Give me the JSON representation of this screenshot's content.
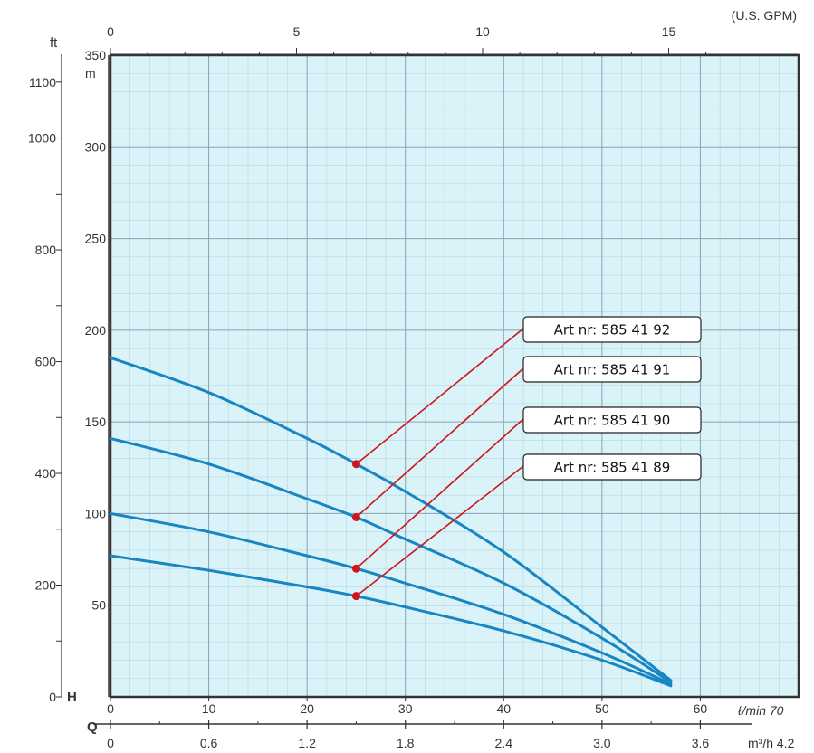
{
  "colors": {
    "plot_background": "#d9f3f8",
    "grid_major": "#8aa1b4",
    "grid_minor": "#b9d4de",
    "curve": "#1786c2",
    "callout": "#d0141b",
    "axis": "#333333"
  },
  "chart_data": {
    "type": "line",
    "x_unit": "l/min",
    "y_unit": "m",
    "xlim": [
      0,
      70
    ],
    "ylim": [
      0,
      350
    ],
    "grid": true,
    "axes": {
      "top": {
        "unit_label": "(U.S. GPM)",
        "ticks": [
          0,
          5,
          10,
          15
        ],
        "tick_labels": [
          "0",
          "5",
          "10",
          "15"
        ]
      },
      "bottom_primary": {
        "axis_label": "H",
        "unit_label": "ℓ/min 70",
        "ticks": [
          0,
          10,
          20,
          30,
          40,
          50,
          60
        ],
        "tick_labels": [
          "0",
          "10",
          "20",
          "30",
          "40",
          "50",
          "60"
        ]
      },
      "bottom_secondary": {
        "axis_label": "Q",
        "unit_label": "m³/h 4.2",
        "ticks": [
          0,
          0.6,
          1.2,
          1.8,
          2.4,
          3.0,
          3.6
        ],
        "tick_labels": [
          "0",
          "0.6",
          "1.2",
          "1.8",
          "2.4",
          "3.0",
          "3.6"
        ]
      },
      "left_outer": {
        "unit_label": "ft",
        "ticks": [
          0,
          200,
          400,
          600,
          800,
          1000,
          1100
        ],
        "tick_labels": [
          "0",
          "200",
          "400",
          "600",
          "800",
          "1000",
          "1100"
        ]
      },
      "left_inner": {
        "unit_label": "m",
        "ticks": [
          50,
          100,
          150,
          200,
          250,
          300,
          350
        ],
        "tick_labels": [
          "50",
          "100",
          "150",
          "200",
          "250",
          "300",
          "350"
        ]
      }
    },
    "series": [
      {
        "name": "Art nr: 585 41 92",
        "x": [
          0,
          10,
          20,
          25,
          30,
          40,
          50,
          57
        ],
        "y": [
          185,
          166,
          141,
          127,
          112,
          79,
          38,
          9
        ],
        "marker": [
          25,
          127
        ]
      },
      {
        "name": "Art nr: 585 41 91",
        "x": [
          0,
          10,
          20,
          25,
          30,
          40,
          50,
          57
        ],
        "y": [
          141,
          127,
          108,
          98,
          86,
          62,
          32,
          8
        ],
        "marker": [
          25,
          98
        ]
      },
      {
        "name": "Art nr: 585 41 90",
        "x": [
          0,
          10,
          20,
          25,
          30,
          40,
          50,
          57
        ],
        "y": [
          100,
          90,
          77,
          70,
          62,
          45,
          24,
          7
        ],
        "marker": [
          25,
          70
        ]
      },
      {
        "name": "Art nr: 585 41 89",
        "x": [
          0,
          10,
          20,
          25,
          30,
          40,
          50,
          57
        ],
        "y": [
          77,
          69,
          60,
          55,
          49,
          36,
          20,
          6
        ],
        "marker": [
          25,
          55
        ]
      }
    ]
  }
}
